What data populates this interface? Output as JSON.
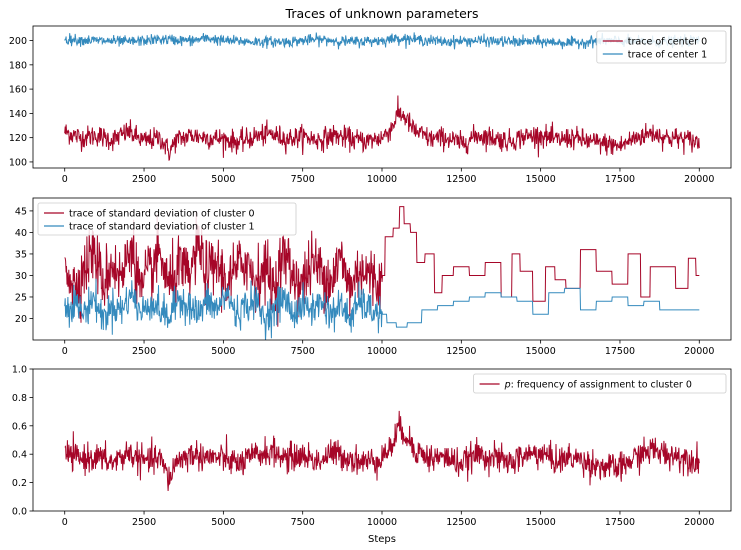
{
  "figure": {
    "title": "Traces of unknown parameters",
    "xlabel": "Steps"
  },
  "colors": {
    "center0": "#A60628",
    "center1": "#348ABD",
    "text": "#000000",
    "axis": "#000000"
  },
  "chart_data": [
    {
      "type": "line",
      "title": "Traces of unknown parameters",
      "xlim": [
        -1000,
        21000
      ],
      "ylim": [
        95,
        212
      ],
      "xticks": [
        0,
        2500,
        5000,
        7500,
        10000,
        12500,
        15000,
        17500,
        20000
      ],
      "yticks": [
        100,
        120,
        140,
        160,
        180,
        200
      ],
      "legend": "top-right",
      "series": [
        {
          "name": "trace of center 0",
          "color": "#A60628",
          "x": [
            0,
            500,
            1000,
            1500,
            2000,
            2500,
            3000,
            3300,
            3500,
            4000,
            4500,
            5000,
            5500,
            6000,
            6500,
            7000,
            7500,
            8000,
            8500,
            9000,
            9500,
            10000,
            10300,
            10500,
            10700,
            11000,
            11500,
            12000,
            12500,
            13000,
            13500,
            14000,
            14500,
            15000,
            15500,
            16000,
            16500,
            17000,
            17500,
            18000,
            18500,
            19000,
            19500,
            20000
          ],
          "values": [
            125,
            120,
            122,
            118,
            125,
            117,
            120,
            108,
            118,
            122,
            120,
            119,
            116,
            121,
            123,
            119,
            121,
            118,
            122,
            119,
            117,
            120,
            128,
            140,
            138,
            126,
            119,
            120,
            115,
            122,
            120,
            117,
            121,
            122,
            118,
            120,
            117,
            115,
            113,
            120,
            124,
            120,
            119,
            116
          ]
        },
        {
          "name": "trace of center 1",
          "color": "#348ABD",
          "x": [
            0,
            1000,
            2000,
            3000,
            4000,
            4500,
            5000,
            6000,
            7000,
            8000,
            9000,
            10000,
            10500,
            11000,
            12000,
            13000,
            14000,
            15000,
            16000,
            17000,
            18000,
            19000,
            20000
          ],
          "values": [
            201,
            200,
            199,
            201,
            200,
            202,
            200,
            199,
            199,
            201,
            199,
            200,
            202,
            201,
            199,
            200,
            199,
            199,
            198,
            200,
            199,
            199,
            200
          ]
        }
      ]
    },
    {
      "type": "line",
      "xlim": [
        -1000,
        21000
      ],
      "ylim": [
        15,
        48
      ],
      "xticks": [
        0,
        2500,
        5000,
        7500,
        10000,
        12500,
        15000,
        17500,
        20000
      ],
      "yticks": [
        20,
        25,
        30,
        35,
        40,
        45
      ],
      "legend": "top-left",
      "series": [
        {
          "name": "trace of standard deviation of cluster 0",
          "color": "#A60628",
          "x": [
            0,
            300,
            600,
            900,
            1200,
            1500,
            1800,
            2100,
            2400,
            2700,
            3000,
            3300,
            3600,
            3900,
            4200,
            4500,
            4800,
            5100,
            5400,
            5700,
            6000,
            6300,
            6600,
            6900,
            7200,
            7500,
            7800,
            8100,
            8400,
            8700,
            9000,
            9300,
            9600,
            9900,
            10000,
            10200,
            10500,
            10600,
            10800,
            11000,
            11200,
            11500,
            11800,
            12000,
            12500,
            13000,
            13500,
            14000,
            14200,
            14500,
            15000,
            15300,
            15600,
            16000,
            16500,
            17000,
            17500,
            18000,
            18300,
            18600,
            19000,
            19500,
            19800,
            20000
          ],
          "values": [
            34,
            27,
            31,
            36,
            28,
            33,
            29,
            38,
            26,
            31,
            35,
            27,
            32,
            29,
            37,
            30,
            33,
            28,
            31,
            34,
            29,
            32,
            27,
            35,
            30,
            28,
            33,
            31,
            29,
            34,
            27,
            32,
            30,
            28,
            30,
            39,
            41,
            46,
            42,
            40,
            33,
            35,
            26,
            30,
            32,
            30,
            33,
            25,
            35,
            31,
            24,
            32,
            29,
            27,
            36,
            31,
            28,
            35,
            25,
            32,
            32,
            27,
            34,
            30
          ]
        },
        {
          "name": "trace of standard deviation of cluster 1",
          "color": "#348ABD",
          "x": [
            0,
            300,
            600,
            900,
            1200,
            1500,
            1800,
            2100,
            2400,
            2700,
            3000,
            3300,
            3600,
            3900,
            4200,
            4500,
            4800,
            5100,
            5400,
            5700,
            6000,
            6300,
            6600,
            6900,
            7200,
            7500,
            7800,
            8100,
            8400,
            8700,
            9000,
            9300,
            9600,
            9900,
            10000,
            10300,
            10600,
            11000,
            11500,
            12000,
            12500,
            13000,
            13500,
            14000,
            14500,
            15000,
            15500,
            16000,
            16500,
            17000,
            17500,
            18000,
            18500,
            19000,
            19500,
            20000
          ],
          "values": [
            22,
            24,
            21,
            25,
            20,
            23,
            22,
            26,
            21,
            24,
            22,
            20,
            25,
            23,
            21,
            24,
            22,
            26,
            21,
            23,
            24,
            20,
            22,
            25,
            21,
            23,
            22,
            24,
            21,
            23,
            20,
            24,
            22,
            21,
            21,
            19,
            18,
            19,
            22,
            23,
            24,
            25,
            26,
            25,
            24,
            21,
            26,
            27,
            22,
            24,
            25,
            23,
            24,
            22,
            22,
            22
          ]
        }
      ]
    },
    {
      "type": "line",
      "xlabel": "Steps",
      "xlim": [
        -1000,
        21000
      ],
      "ylim": [
        0,
        1
      ],
      "xticks": [
        0,
        2500,
        5000,
        7500,
        10000,
        12500,
        15000,
        17500,
        20000
      ],
      "yticks": [
        0.0,
        0.2,
        0.4,
        0.6,
        0.8,
        1.0
      ],
      "legend": "top-right",
      "series": [
        {
          "name": "$p$: frequency of assignment to cluster 0",
          "label_prefix": "p",
          "label_rest": ": frequency of assignment to cluster 0",
          "color": "#A60628",
          "x": [
            0,
            500,
            1000,
            1500,
            2000,
            2500,
            3000,
            3300,
            3500,
            4000,
            4500,
            5000,
            5500,
            6000,
            6500,
            7000,
            7500,
            8000,
            8500,
            9000,
            9500,
            10000,
            10300,
            10500,
            10700,
            11000,
            11500,
            12000,
            12500,
            13000,
            13500,
            14000,
            14500,
            15000,
            15500,
            16000,
            16500,
            17000,
            17500,
            18000,
            18500,
            19000,
            19500,
            20000
          ],
          "values": [
            0.4,
            0.37,
            0.38,
            0.34,
            0.41,
            0.35,
            0.37,
            0.22,
            0.35,
            0.4,
            0.38,
            0.37,
            0.33,
            0.39,
            0.42,
            0.37,
            0.39,
            0.35,
            0.41,
            0.37,
            0.34,
            0.38,
            0.45,
            0.58,
            0.56,
            0.44,
            0.37,
            0.38,
            0.33,
            0.4,
            0.38,
            0.34,
            0.39,
            0.41,
            0.35,
            0.38,
            0.34,
            0.31,
            0.3,
            0.38,
            0.43,
            0.4,
            0.38,
            0.35
          ]
        }
      ]
    }
  ]
}
